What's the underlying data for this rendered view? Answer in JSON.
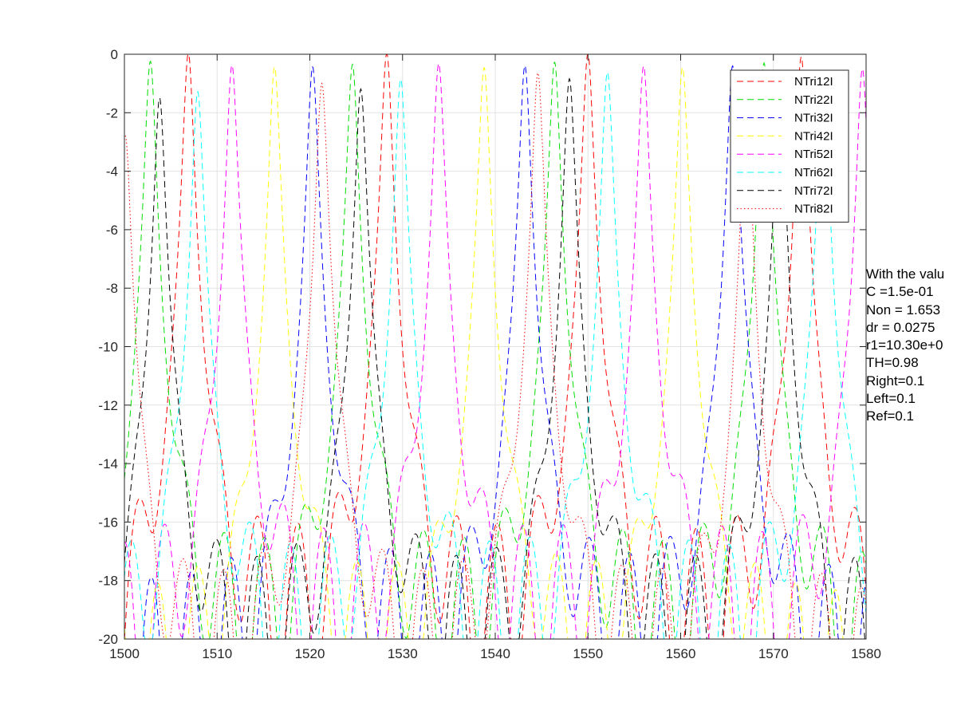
{
  "chart_data": {
    "type": "line",
    "title": "",
    "xlabel": "",
    "ylabel": "",
    "xlim": [
      1500,
      1580
    ],
    "ylim": [
      -20,
      0
    ],
    "x_ticks": [
      "1500",
      "1510",
      "1520",
      "1530",
      "1540",
      "1550",
      "1560",
      "1570",
      "1580"
    ],
    "y_ticks": [
      "0",
      "-2",
      "-4",
      "-6",
      "-8",
      "-10",
      "-12",
      "-14",
      "-16",
      "-18",
      "-20"
    ],
    "grid": true,
    "legend_position": "top-right",
    "series": [
      {
        "name": "NTri12I",
        "color": "#ff0000",
        "style": "dashed",
        "resonances": [
          1506.9,
          1528.3,
          1550.0,
          1573.0
        ],
        "peaks": [
          0,
          0,
          0,
          -0.1
        ]
      },
      {
        "name": "NTri22I",
        "color": "#00dd00",
        "style": "dashed",
        "resonances": [
          1502.8,
          1524.6,
          1546.4,
          1569.0
        ],
        "peaks": [
          -0.3,
          -0.4,
          -0.3,
          -0.3
        ]
      },
      {
        "name": "NTri32I",
        "color": "#0000ff",
        "style": "dashed",
        "resonances": [
          1520.3,
          1543.2,
          1565.6
        ],
        "peaks": [
          -0.5,
          -0.4,
          -0.4
        ]
      },
      {
        "name": "NTri42I",
        "color": "#ffff00",
        "style": "dashed",
        "resonances": [
          1516.2,
          1538.8,
          1560.2
        ],
        "peaks": [
          -0.5,
          -0.5,
          -0.5
        ]
      },
      {
        "name": "NTri52I",
        "color": "#ff00ff",
        "style": "dashed",
        "resonances": [
          1511.6,
          1533.9,
          1556.0,
          1579.6
        ],
        "peaks": [
          -0.4,
          -0.4,
          -0.5,
          -0.5
        ]
      },
      {
        "name": "NTri62I",
        "color": "#00ffff",
        "style": "dashed",
        "resonances": [
          1507.9,
          1529.8,
          1552.1,
          1575.4
        ],
        "peaks": [
          -1.3,
          -0.9,
          -0.7,
          -0.9
        ]
      },
      {
        "name": "NTri72I",
        "color": "#000000",
        "style": "dashed",
        "resonances": [
          1503.8,
          1525.5,
          1548.0,
          1570.7
        ],
        "peaks": [
          -1.5,
          -1.2,
          -0.9,
          -1.2
        ]
      },
      {
        "name": "NTri82I",
        "color": "#ff0000",
        "style": "dotted",
        "resonances": [
          1500.1,
          1521.3,
          1544.6,
          1567.1
        ],
        "peaks": [
          -2.8,
          -1.0,
          -0.7,
          -2.0
        ]
      }
    ]
  },
  "annotation": {
    "lines": [
      "With the valu",
      "C =1.5e-01",
      "Non = 1.653",
      "dr = 0.0275",
      "r1=10.30e+0",
      "TH=0.98",
      "Right=0.1",
      "Left=0.1",
      "Ref=0.1"
    ]
  }
}
